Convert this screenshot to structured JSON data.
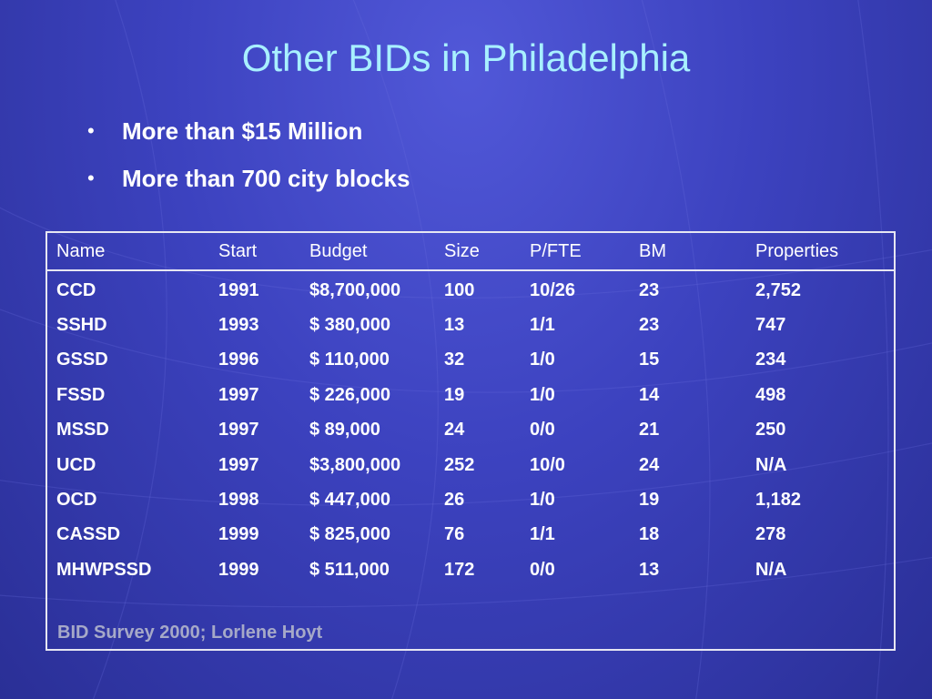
{
  "title": "Other BIDs in Philadelphia",
  "bullets": [
    "More than $15 Million",
    "More than 700 city blocks"
  ],
  "table": {
    "headers": [
      "Name",
      "Start",
      "Budget",
      "Size",
      "P/FTE",
      "BM",
      "Properties"
    ],
    "rows": [
      [
        "CCD",
        "1991",
        "$8,700,000",
        "100",
        "10/26",
        "23",
        "2,752"
      ],
      [
        "SSHD",
        "1993",
        "$ 380,000",
        "13",
        "1/1",
        "23",
        "747"
      ],
      [
        "GSSD",
        "1996",
        "$ 110,000",
        "32",
        "1/0",
        "15",
        "234"
      ],
      [
        "FSSD",
        "1997",
        "$ 226,000",
        "19",
        "1/0",
        "14",
        "498"
      ],
      [
        "MSSD",
        "1997",
        "$ 89,000",
        "24",
        "0/0",
        "21",
        "250"
      ],
      [
        "UCD",
        "1997",
        "$3,800,000",
        "252",
        "10/0",
        "24",
        "N/A"
      ],
      [
        "OCD",
        "1998",
        "$ 447,000",
        "26",
        "1/0",
        "19",
        "1,182"
      ],
      [
        "CASSD",
        "1999",
        "$ 825,000",
        "76",
        "1/1",
        "18",
        "278"
      ],
      [
        "MHWPSSD",
        "1999",
        "$ 511,000",
        "172",
        "0/0",
        "13",
        "N/A"
      ]
    ]
  },
  "footnote": "BID Survey 2000; Lorlene Hoyt",
  "colors": {
    "background": "#3c42bf",
    "title": "#a8f0ff",
    "text": "#ffffff",
    "footnote": "#a6a9c8"
  }
}
